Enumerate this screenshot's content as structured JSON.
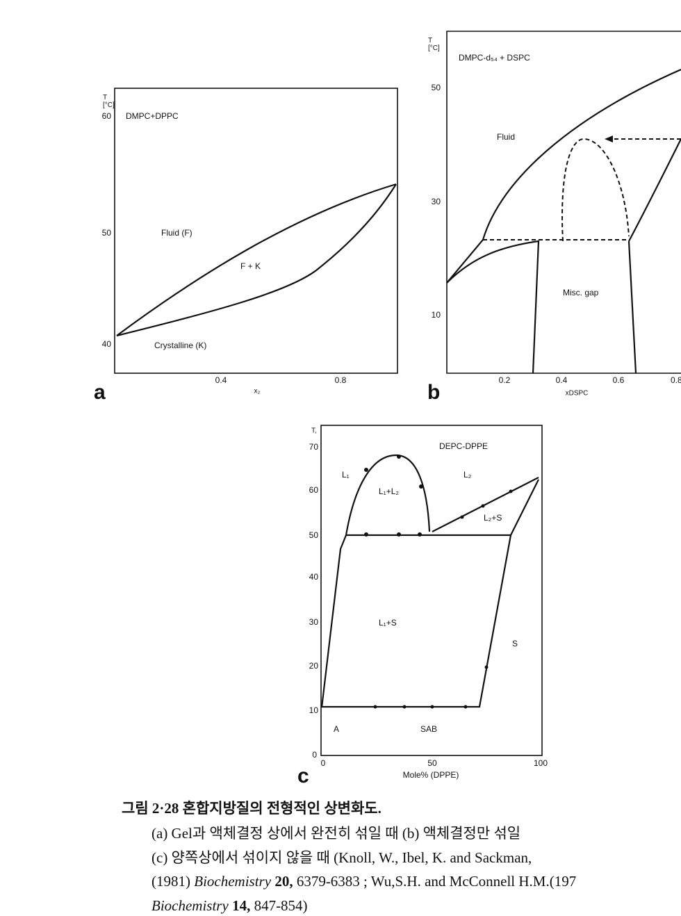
{
  "figure_a": {
    "panel": "a",
    "y_unit": "T\n[°C]",
    "yticks": [
      "60",
      "50",
      "40"
    ],
    "xticks": [
      "0.4",
      "0.8"
    ],
    "x_label": "x₂",
    "system": "DMPC+DPPC",
    "regions": [
      "Fluid (F)",
      "F + K",
      "Crystalline (K)"
    ]
  },
  "figure_b": {
    "panel": "b",
    "y_unit": "T\n[°C]",
    "yticks": [
      "50",
      "30",
      "10"
    ],
    "xticks": [
      "0.2",
      "0.4",
      "0.6",
      "0.8"
    ],
    "x_label": "xDSPC",
    "system": "DMPC-d₅₄ + DSPC",
    "regions": [
      "Fluid",
      "Misc. gap"
    ]
  },
  "figure_c": {
    "panel": "c",
    "y_unit": "T,",
    "yticks": [
      "70",
      "60",
      "50",
      "40",
      "30",
      "20",
      "10",
      "0"
    ],
    "xticks": [
      "0",
      "50",
      "100"
    ],
    "x_label": "Mole% (DPPE)",
    "system": "DEPC-DPPE",
    "regions": [
      "L₁",
      "L₁+L₂",
      "L₂",
      "L₂+S",
      "L₁+S",
      "S",
      "A",
      "SAB"
    ]
  },
  "caption": {
    "lines": [
      [
        "그림 2·28  혼합지방질의 전형적인 상변화도."
      ],
      [
        "(a) Gel과 액체결정 상에서 완전히 섞일 때 (b) 액체결정만 섞일"
      ],
      [
        "(c) 양쪽상에서 섞이지 않을 때 (Knoll, W., Ibel, K. and Sackman,"
      ],
      [
        "(1981) ",
        "Biochemistry",
        " 20,",
        " 6379-6383 ; Wu,S.H. and McConnell H.M.(197"
      ],
      [
        "Biochemistry",
        " 14,",
        "  847-854)"
      ]
    ]
  }
}
